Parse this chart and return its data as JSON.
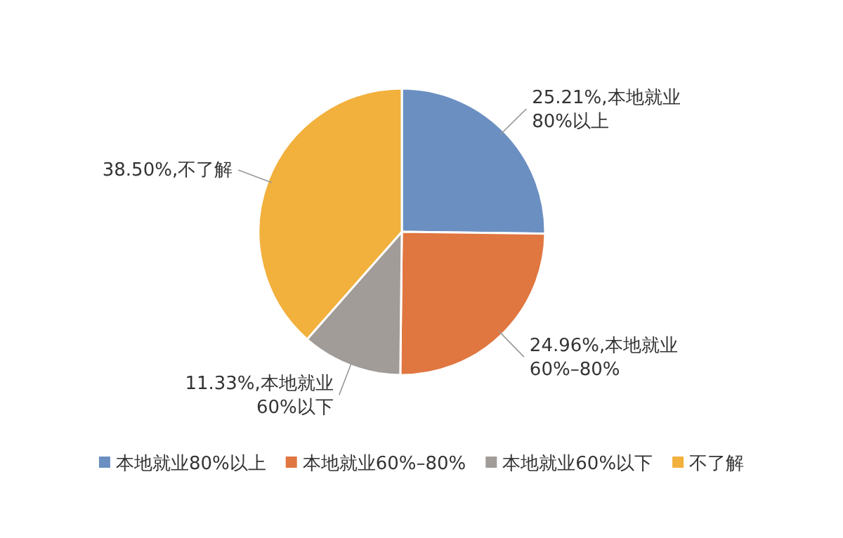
{
  "chart_data": {
    "type": "pie",
    "categories": [
      "本地就业80%以上",
      "本地就业60%–80%",
      "本地就业60%以下",
      "不了解"
    ],
    "values": [
      25.21,
      24.96,
      11.33,
      38.5
    ],
    "colors": [
      "#6b8fc1",
      "#e07640",
      "#a19c98",
      "#f2b03c"
    ],
    "value_labels": [
      "25.21%,本地就业\n80%以上",
      "24.96%,本地就业\n60%–80%",
      "11.33%,本地就业\n60%以下",
      "38.50%,不了解"
    ],
    "legend": "bottom"
  }
}
